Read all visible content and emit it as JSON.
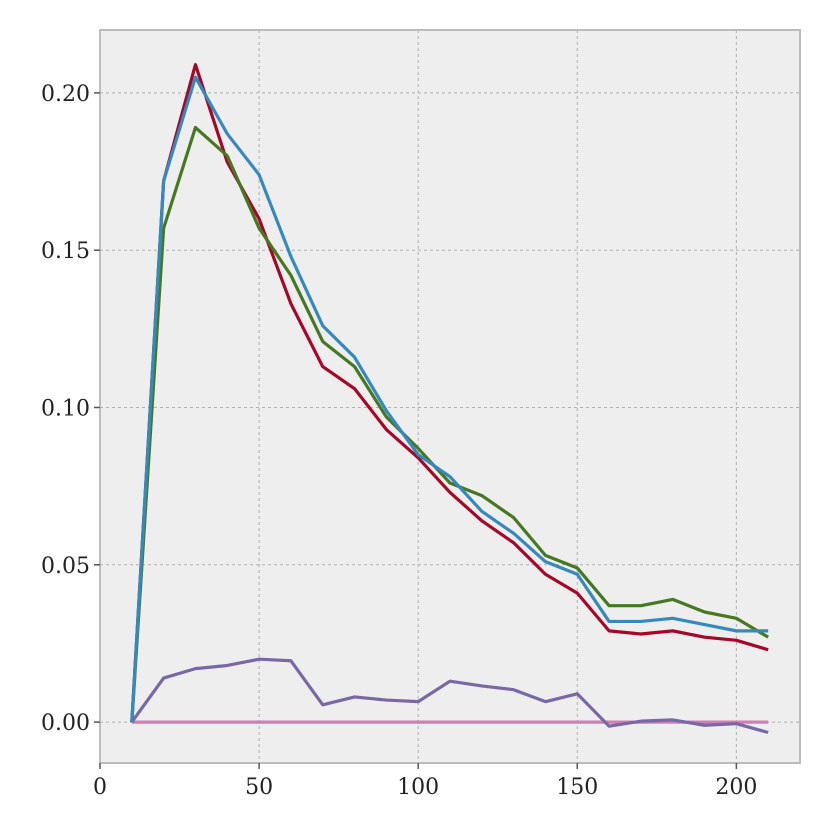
{
  "chart_data": {
    "type": "line",
    "title": "",
    "xlabel": "",
    "ylabel": "",
    "xlim": [
      0,
      220
    ],
    "ylim": [
      -0.013,
      0.22
    ],
    "x_ticks": [
      0,
      50,
      100,
      150,
      200
    ],
    "y_ticks": [
      0.0,
      0.05,
      0.1,
      0.15,
      0.2
    ],
    "x_tick_labels": [
      "0",
      "50",
      "100",
      "150",
      "200"
    ],
    "y_tick_labels": [
      "0.00",
      "0.05",
      "0.10",
      "0.15",
      "0.20"
    ],
    "grid": true,
    "background_color": "#eeeeee",
    "series": [
      {
        "color": "#a60628",
        "x": [
          10,
          20,
          30,
          40,
          50,
          60,
          70,
          80,
          90,
          100,
          110,
          120,
          130,
          140,
          150,
          160,
          170,
          180,
          190,
          200,
          210
        ],
        "y": [
          0.0,
          0.172,
          0.209,
          0.178,
          0.16,
          0.133,
          0.113,
          0.106,
          0.093,
          0.084,
          0.073,
          0.064,
          0.057,
          0.047,
          0.041,
          0.029,
          0.028,
          0.029,
          0.027,
          0.026,
          0.023
        ]
      },
      {
        "color": "#467821",
        "x": [
          10,
          20,
          30,
          40,
          50,
          60,
          70,
          80,
          90,
          100,
          110,
          120,
          130,
          140,
          150,
          160,
          170,
          180,
          190,
          200,
          210
        ],
        "y": [
          0.0,
          0.157,
          0.189,
          0.18,
          0.157,
          0.142,
          0.121,
          0.113,
          0.097,
          0.087,
          0.076,
          0.072,
          0.065,
          0.053,
          0.049,
          0.037,
          0.037,
          0.039,
          0.035,
          0.033,
          0.027
        ]
      },
      {
        "color": "#348abd",
        "x": [
          10,
          20,
          30,
          40,
          50,
          60,
          70,
          80,
          90,
          100,
          110,
          120,
          130,
          140,
          150,
          160,
          170,
          180,
          190,
          200,
          210
        ],
        "y": [
          0.0,
          0.172,
          0.205,
          0.187,
          0.174,
          0.148,
          0.126,
          0.116,
          0.099,
          0.085,
          0.078,
          0.067,
          0.06,
          0.051,
          0.047,
          0.032,
          0.032,
          0.033,
          0.031,
          0.029,
          0.029
        ]
      },
      {
        "color": "#7a68a6",
        "x": [
          10,
          20,
          30,
          40,
          50,
          60,
          70,
          80,
          90,
          100,
          110,
          120,
          130,
          140,
          150,
          160,
          170,
          180,
          190,
          200,
          210
        ],
        "y": [
          0.0,
          0.014,
          0.017,
          0.018,
          0.02,
          0.0195,
          0.0055,
          0.008,
          0.007,
          0.0065,
          0.013,
          0.0115,
          0.0103,
          0.0065,
          0.009,
          -0.0013,
          0.0003,
          0.0007,
          -0.001,
          -0.0005,
          -0.0033
        ]
      },
      {
        "color": "#cf7fb2",
        "x": [
          10,
          210
        ],
        "y": [
          0.0,
          0.0
        ]
      }
    ]
  }
}
